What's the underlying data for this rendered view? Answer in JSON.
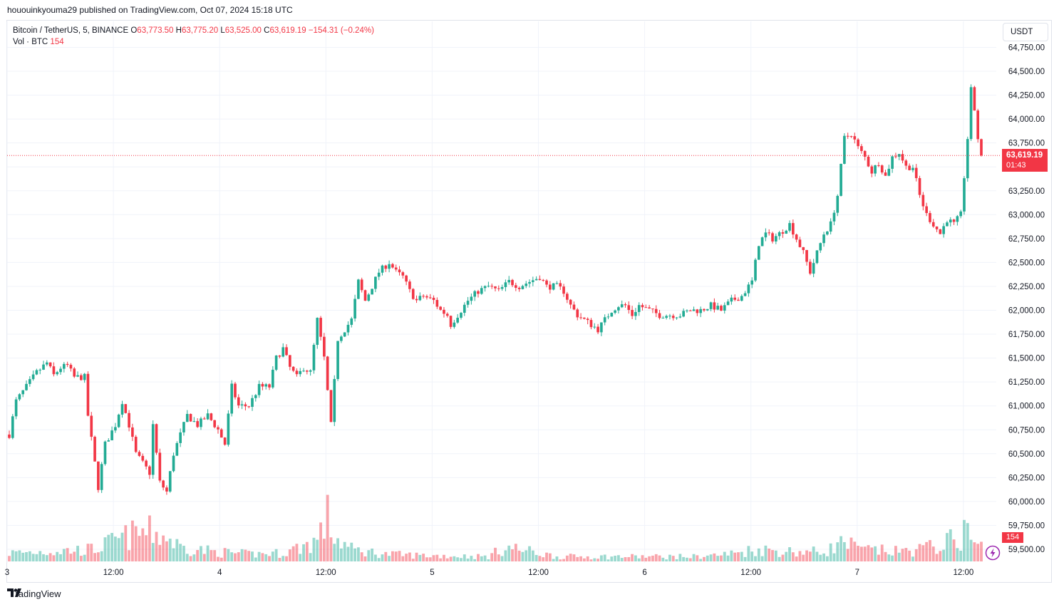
{
  "header": {
    "published_by": "hououinkyouma29 published on TradingView.com, Oct 07, 2024 15:18 UTC"
  },
  "legend": {
    "symbol": "Bitcoin / TetherUS, 5, BINANCE",
    "open_label": "O",
    "open": "63,773.50",
    "high_label": "H",
    "high": "63,775.20",
    "low_label": "L",
    "low": "63,525.00",
    "close_label": "C",
    "close": "63,619.19",
    "change": "−154.31 (−0.24%)",
    "vol_label": "Vol · BTC",
    "vol_value": "154"
  },
  "currency_button": "USDT",
  "last_price": {
    "value": "63,619.19",
    "countdown": "01:43"
  },
  "volume_tag": "154",
  "footer": {
    "brand": "TradingView"
  },
  "colors": {
    "up": "#22ab94",
    "down": "#f23645",
    "grid": "#f0f3fa"
  },
  "chart_data": {
    "type": "candlestick",
    "title": "Bitcoin / TetherUS, 5, BINANCE",
    "ylabel": "USDT",
    "ylim": [
      59400,
      64900
    ],
    "y_ticks": [
      "64,750.00",
      "64,500.00",
      "64,250.00",
      "64,000.00",
      "63,750.00",
      "63,500.00",
      "63,250.00",
      "63,000.00",
      "62,750.00",
      "62,500.00",
      "62,250.00",
      "62,000.00",
      "61,750.00",
      "61,500.00",
      "61,250.00",
      "61,000.00",
      "60,750.00",
      "60,500.00",
      "60,250.00",
      "60,000.00",
      "59,750.00",
      "59,500.00"
    ],
    "x_ticks": [
      "3",
      "12:00",
      "4",
      "12:00",
      "5",
      "12:00",
      "6",
      "12:00",
      "7",
      "12:00"
    ],
    "grid": true,
    "price_path": [
      [
        0,
        60700
      ],
      [
        2,
        61050
      ],
      [
        5,
        61200
      ],
      [
        8,
        61350
      ],
      [
        11,
        61450
      ],
      [
        13,
        61320
      ],
      [
        15,
        61400
      ],
      [
        17,
        61420
      ],
      [
        19,
        61300
      ],
      [
        22,
        61300
      ],
      [
        23,
        60900
      ],
      [
        25,
        60400
      ],
      [
        26,
        60150
      ],
      [
        28,
        60600
      ],
      [
        31,
        60800
      ],
      [
        33,
        61050
      ],
      [
        35,
        60800
      ],
      [
        37,
        60500
      ],
      [
        39,
        60400
      ],
      [
        41,
        60300
      ],
      [
        42,
        60800
      ],
      [
        44,
        60200
      ],
      [
        46,
        60100
      ],
      [
        48,
        60500
      ],
      [
        50,
        60700
      ],
      [
        52,
        60900
      ],
      [
        55,
        60800
      ],
      [
        58,
        60900
      ],
      [
        61,
        60750
      ],
      [
        63,
        60600
      ],
      [
        65,
        61200
      ],
      [
        67,
        61000
      ],
      [
        70,
        61000
      ],
      [
        73,
        61200
      ],
      [
        76,
        61200
      ],
      [
        78,
        61500
      ],
      [
        80,
        61600
      ],
      [
        82,
        61400
      ],
      [
        84,
        61300
      ],
      [
        86,
        61400
      ],
      [
        88,
        61350
      ],
      [
        90,
        61900
      ],
      [
        92,
        61500
      ],
      [
        94,
        60800
      ],
      [
        96,
        61700
      ],
      [
        98,
        61800
      ],
      [
        100,
        61900
      ],
      [
        102,
        62300
      ],
      [
        104,
        62100
      ],
      [
        106,
        62250
      ],
      [
        108,
        62400
      ],
      [
        111,
        62500
      ],
      [
        113,
        62400
      ],
      [
        115,
        62350
      ],
      [
        117,
        62200
      ],
      [
        119,
        62100
      ],
      [
        121,
        62150
      ],
      [
        124,
        62100
      ],
      [
        126,
        62000
      ],
      [
        128,
        61950
      ],
      [
        129,
        61850
      ],
      [
        131,
        61950
      ],
      [
        134,
        62100
      ],
      [
        137,
        62200
      ],
      [
        140,
        62250
      ],
      [
        143,
        62200
      ],
      [
        146,
        62300
      ],
      [
        149,
        62250
      ],
      [
        152,
        62300
      ],
      [
        155,
        62350
      ],
      [
        157,
        62250
      ],
      [
        160,
        62250
      ],
      [
        162,
        62200
      ],
      [
        164,
        62050
      ],
      [
        166,
        61950
      ],
      [
        168,
        61900
      ],
      [
        170,
        61850
      ],
      [
        172,
        61800
      ],
      [
        174,
        61900
      ],
      [
        176,
        62000
      ],
      [
        178,
        62050
      ],
      [
        180,
        62050
      ],
      [
        182,
        61950
      ],
      [
        184,
        62050
      ],
      [
        187,
        62000
      ],
      [
        190,
        61950
      ],
      [
        193,
        61950
      ],
      [
        196,
        61950
      ],
      [
        199,
        62000
      ],
      [
        202,
        62000
      ],
      [
        205,
        62050
      ],
      [
        208,
        62000
      ],
      [
        211,
        62100
      ],
      [
        214,
        62150
      ],
      [
        217,
        62300
      ],
      [
        219,
        62700
      ],
      [
        221,
        62800
      ],
      [
        223,
        62750
      ],
      [
        225,
        62800
      ],
      [
        228,
        62900
      ],
      [
        230,
        62750
      ],
      [
        232,
        62600
      ],
      [
        234,
        62400
      ],
      [
        236,
        62600
      ],
      [
        238,
        62800
      ],
      [
        240,
        62900
      ],
      [
        242,
        63200
      ],
      [
        243,
        63500
      ],
      [
        244,
        63800
      ],
      [
        246,
        63850
      ],
      [
        248,
        63700
      ],
      [
        250,
        63600
      ],
      [
        252,
        63450
      ],
      [
        254,
        63550
      ],
      [
        256,
        63400
      ],
      [
        258,
        63600
      ],
      [
        260,
        63650
      ],
      [
        262,
        63500
      ],
      [
        264,
        63500
      ],
      [
        266,
        63200
      ],
      [
        268,
        63000
      ],
      [
        270,
        62900
      ],
      [
        272,
        62800
      ],
      [
        274,
        62950
      ],
      [
        276,
        62900
      ],
      [
        278,
        63000
      ],
      [
        279,
        63400
      ],
      [
        280,
        63800
      ],
      [
        281,
        64300
      ],
      [
        282,
        64100
      ],
      [
        283,
        63800
      ],
      [
        284,
        63619
      ]
    ],
    "volume_path": [
      [
        0,
        35
      ],
      [
        25,
        50
      ],
      [
        30,
        80
      ],
      [
        34,
        100
      ],
      [
        38,
        120
      ],
      [
        42,
        120
      ],
      [
        46,
        100
      ],
      [
        50,
        60
      ],
      [
        60,
        40
      ],
      [
        70,
        30
      ],
      [
        80,
        35
      ],
      [
        88,
        75
      ],
      [
        90,
        90
      ],
      [
        93,
        180
      ],
      [
        95,
        100
      ],
      [
        100,
        50
      ],
      [
        110,
        30
      ],
      [
        120,
        25
      ],
      [
        140,
        20
      ],
      [
        145,
        60
      ],
      [
        160,
        20
      ],
      [
        180,
        20
      ],
      [
        200,
        20
      ],
      [
        210,
        30
      ],
      [
        218,
        50
      ],
      [
        230,
        40
      ],
      [
        238,
        40
      ],
      [
        244,
        80
      ],
      [
        248,
        50
      ],
      [
        260,
        40
      ],
      [
        270,
        60
      ],
      [
        274,
        80
      ],
      [
        278,
        100
      ],
      [
        279,
        120
      ],
      [
        280,
        160
      ],
      [
        281,
        90
      ],
      [
        284,
        60
      ]
    ]
  }
}
